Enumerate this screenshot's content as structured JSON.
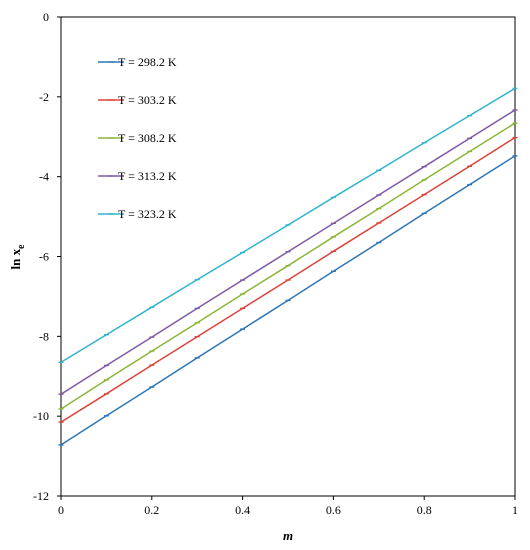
{
  "chart_data": {
    "type": "line",
    "title": "",
    "xlabel": "m",
    "ylabel_main": "ln x",
    "ylabel_sub": "e",
    "xlim": [
      0,
      1
    ],
    "ylim": [
      -12,
      0
    ],
    "x_ticks": [
      "0",
      "0.2",
      "0.4",
      "0.6",
      "0.8",
      "1"
    ],
    "y_ticks": [
      "0",
      "-2",
      "-4",
      "-6",
      "-8",
      "-10",
      "-12"
    ],
    "grid": false,
    "legend_position": "top-left",
    "x": [
      0,
      0.1,
      0.2,
      0.3,
      0.4,
      0.5,
      0.6,
      0.7,
      0.8,
      0.9,
      1.0
    ],
    "series": [
      {
        "name": "T = 298.2 K",
        "color": "#2e75b6",
        "values": [
          -10.72,
          -9.99,
          -9.27,
          -8.54,
          -7.82,
          -7.1,
          -6.37,
          -5.65,
          -4.92,
          -4.2,
          -3.48
        ]
      },
      {
        "name": "T = 303.2 K",
        "color": "#d9443a",
        "values": [
          -10.15,
          -9.44,
          -8.72,
          -8.01,
          -7.3,
          -6.59,
          -5.87,
          -5.16,
          -4.45,
          -3.74,
          -3.02
        ]
      },
      {
        "name": "T = 308.2 K",
        "color": "#8db53a",
        "values": [
          -9.82,
          -9.09,
          -8.37,
          -7.66,
          -6.94,
          -6.23,
          -5.51,
          -4.8,
          -4.08,
          -3.37,
          -2.66
        ]
      },
      {
        "name": "T = 313.2 K",
        "color": "#7f5aa6",
        "values": [
          -9.45,
          -8.73,
          -8.02,
          -7.3,
          -6.59,
          -5.88,
          -5.17,
          -4.46,
          -3.75,
          -3.04,
          -2.33
        ]
      },
      {
        "name": "T = 323.2 K",
        "color": "#31b4cc",
        "values": [
          -8.65,
          -7.96,
          -7.27,
          -6.58,
          -5.9,
          -5.21,
          -4.52,
          -3.84,
          -3.15,
          -2.47,
          -1.79
        ]
      }
    ]
  }
}
